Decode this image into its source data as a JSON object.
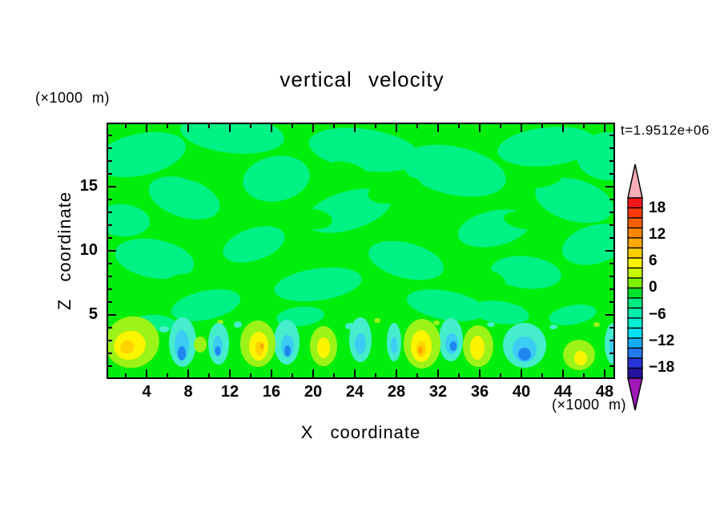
{
  "title": "vertical velocity",
  "time_label": "t=1.9512e+06",
  "x_axis": {
    "label": "X coordinate",
    "unit": "(×1000 m)",
    "ticks": [
      4,
      8,
      12,
      16,
      20,
      24,
      28,
      32,
      36,
      40,
      44,
      48
    ],
    "minor_step": 2,
    "major_step": 4,
    "range": [
      0,
      48.8
    ]
  },
  "y_axis": {
    "label": "Z coordinate",
    "unit": "(×1000 m)",
    "ticks": [
      5,
      10,
      15
    ],
    "minor_step": 1,
    "major_step": 5,
    "range": [
      0,
      19.9
    ]
  },
  "chart_data": {
    "type": "heatmap",
    "subtype": "filled-contour",
    "title": "vertical velocity",
    "xlabel": "X coordinate (×1000 m)",
    "ylabel": "Z coordinate (×1000 m)",
    "time_annotation": "t=1.9512e+06",
    "x_ticks": [
      4,
      8,
      12,
      16,
      20,
      24,
      28,
      32,
      36,
      40,
      44,
      48
    ],
    "y_ticks": [
      5,
      10,
      15
    ],
    "xlim": [
      0,
      48.8
    ],
    "ylim": [
      0,
      19.9
    ],
    "grid": false,
    "legend_position": "right-colorbar",
    "colorbar": {
      "labels": [
        "18",
        "12",
        "6",
        "0",
        "−6",
        "−12",
        "−18"
      ],
      "label_values": [
        18,
        12,
        6,
        0,
        -6,
        -12,
        -18
      ],
      "arrow_top": "#F8AEB6",
      "arrow_bottom": "#A018B8",
      "segments": [
        "#F5161C",
        "#FB3A0B",
        "#FD6002",
        "#FE8500",
        "#FFA900",
        "#FFCE00",
        "#FFF300",
        "#C6F800",
        "#7CEF00",
        "#00E32B",
        "#00EC80",
        "#00EDAA",
        "#00F0D4",
        "#00E2F3",
        "#13ADF6",
        "#2379F0",
        "#2734D8",
        "#22109E"
      ]
    },
    "palette": {
      "bg": "#00EE0C",
      "sg": "#00F284",
      "ch": "#9CF318",
      "ye": "#FDF400",
      "go": "#FFD400",
      "or": "#FFA800",
      "tq": "#45EDCC",
      "cy": "#3BCDF3",
      "bl": "#1F86F0",
      "gr": "#00EE0C"
    },
    "field_description": "Mostly near-zero mottled green field aloft; row of convective updraft plumes (yellow/orange cores) and downdrafts (cyan/blue cores) near the surface",
    "field_blobs": [
      [
        40,
        38,
        58,
        26,
        -12,
        "sg"
      ],
      [
        155,
        12,
        65,
        24,
        6,
        "sg"
      ],
      [
        95,
        92,
        46,
        24,
        18,
        "sg"
      ],
      [
        210,
        68,
        42,
        28,
        -10,
        "sg"
      ],
      [
        320,
        32,
        70,
        26,
        8,
        "sg"
      ],
      [
        300,
        108,
        55,
        24,
        -16,
        "sg"
      ],
      [
        432,
        58,
        66,
        30,
        12,
        "sg"
      ],
      [
        548,
        28,
        62,
        24,
        -6,
        "sg"
      ],
      [
        582,
        95,
        50,
        26,
        15,
        "sg"
      ],
      [
        482,
        130,
        46,
        22,
        -12,
        "sg"
      ],
      [
        58,
        168,
        50,
        24,
        10,
        "sg"
      ],
      [
        182,
        150,
        40,
        20,
        -18,
        "sg"
      ],
      [
        372,
        170,
        48,
        22,
        14,
        "sg"
      ],
      [
        262,
        200,
        55,
        20,
        -8,
        "sg"
      ],
      [
        522,
        185,
        44,
        20,
        6,
        "sg"
      ],
      [
        122,
        226,
        44,
        18,
        -12,
        "sg"
      ],
      [
        422,
        226,
        50,
        18,
        10,
        "sg"
      ],
      [
        608,
        150,
        42,
        24,
        -15,
        "sg"
      ],
      [
        18,
        120,
        34,
        20,
        4,
        "sg"
      ],
      [
        625,
        40,
        40,
        30,
        0,
        "sg"
      ],
      [
        490,
        235,
        36,
        14,
        8,
        "sg"
      ],
      [
        240,
        240,
        30,
        12,
        -6,
        "sg"
      ],
      [
        60,
        248,
        26,
        10,
        5,
        "sg"
      ],
      [
        580,
        238,
        30,
        12,
        -10,
        "sg"
      ],
      [
        112,
        58,
        30,
        14,
        10,
        "gr"
      ],
      [
        358,
        82,
        34,
        16,
        -12,
        "gr"
      ],
      [
        252,
        118,
        28,
        13,
        6,
        "gr"
      ],
      [
        540,
        66,
        28,
        13,
        -8,
        "gr"
      ],
      [
        468,
        192,
        28,
        12,
        12,
        "gr"
      ],
      [
        92,
        198,
        24,
        11,
        -10,
        "gr"
      ],
      [
        300,
        60,
        26,
        12,
        16,
        "gr"
      ],
      [
        170,
        105,
        24,
        11,
        -14,
        "gr"
      ],
      [
        520,
        120,
        26,
        11,
        8,
        "gr"
      ],
      [
        620,
        200,
        24,
        12,
        -5,
        "gr"
      ],
      [
        70,
        256,
        6,
        4,
        0,
        "tq"
      ],
      [
        162,
        250,
        5,
        4,
        0,
        "tq"
      ],
      [
        302,
        252,
        6,
        4,
        0,
        "tq"
      ],
      [
        478,
        250,
        5,
        3,
        0,
        "tq"
      ],
      [
        556,
        253,
        5,
        3,
        0,
        "tq"
      ],
      [
        35,
        252,
        4,
        3,
        0,
        "tq"
      ],
      [
        140,
        247,
        4,
        3,
        0,
        "ch"
      ],
      [
        336,
        245,
        4,
        3,
        0,
        "ch"
      ],
      [
        610,
        250,
        4,
        3,
        0,
        "ch"
      ],
      [
        410,
        248,
        4,
        3,
        0,
        "ch"
      ],
      [
        1,
        273,
        5,
        14,
        0,
        "tq"
      ],
      [
        93,
        272,
        17,
        31,
        0,
        "tq"
      ],
      [
        138,
        274,
        13,
        26,
        0,
        "tq"
      ],
      [
        223,
        272,
        16,
        28,
        0,
        "tq"
      ],
      [
        315,
        269,
        14,
        28,
        0,
        "tq"
      ],
      [
        357,
        272,
        9,
        24,
        0,
        "tq"
      ],
      [
        428,
        269,
        15,
        27,
        0,
        "tq"
      ],
      [
        520,
        276,
        27,
        28,
        0,
        "tq"
      ],
      [
        631,
        274,
        11,
        26,
        0,
        "tq"
      ],
      [
        30,
        272,
        34,
        32,
        -20,
        "ch"
      ],
      [
        115,
        275,
        8,
        10,
        0,
        "ch"
      ],
      [
        187,
        274,
        22,
        29,
        0,
        "ch"
      ],
      [
        269,
        277,
        17,
        25,
        0,
        "ch"
      ],
      [
        392,
        274,
        23,
        31,
        0,
        "ch"
      ],
      [
        462,
        277,
        19,
        26,
        0,
        "ch"
      ],
      [
        588,
        288,
        20,
        19,
        0,
        "ch"
      ],
      [
        92,
        276,
        9,
        19,
        0,
        "cy"
      ],
      [
        137,
        277,
        6,
        13,
        0,
        "cy"
      ],
      [
        224,
        277,
        8,
        14,
        0,
        "cy"
      ],
      [
        315,
        274,
        7,
        13,
        0,
        "cy"
      ],
      [
        357,
        276,
        4,
        11,
        0,
        "cy"
      ],
      [
        429,
        274,
        8,
        13,
        0,
        "cy"
      ],
      [
        520,
        281,
        15,
        16,
        0,
        "cy"
      ],
      [
        631,
        277,
        5,
        12,
        0,
        "cy"
      ],
      [
        27,
        276,
        20,
        18,
        -20,
        "ye"
      ],
      [
        188,
        277,
        12,
        18,
        0,
        "ye"
      ],
      [
        269,
        279,
        8,
        13,
        0,
        "ye"
      ],
      [
        391,
        277,
        13,
        20,
        0,
        "ye"
      ],
      [
        461,
        279,
        9,
        15,
        0,
        "ye"
      ],
      [
        590,
        292,
        8,
        9,
        0,
        "ye"
      ],
      [
        92,
        286,
        5,
        9,
        0,
        "bl"
      ],
      [
        137,
        283,
        3.5,
        6,
        0,
        "bl"
      ],
      [
        224,
        283,
        4,
        7,
        0,
        "bl"
      ],
      [
        431,
        277,
        4.5,
        6,
        0,
        "bl"
      ],
      [
        520,
        287,
        8,
        8,
        0,
        "bl"
      ],
      [
        24,
        278,
        9,
        8,
        -20,
        "go"
      ],
      [
        189,
        280,
        5,
        9,
        0,
        "go"
      ],
      [
        391,
        281,
        6,
        10,
        0,
        "go"
      ],
      [
        192,
        277,
        2.5,
        4,
        0,
        "or"
      ],
      [
        390,
        282,
        3,
        5,
        0,
        "or"
      ]
    ]
  }
}
